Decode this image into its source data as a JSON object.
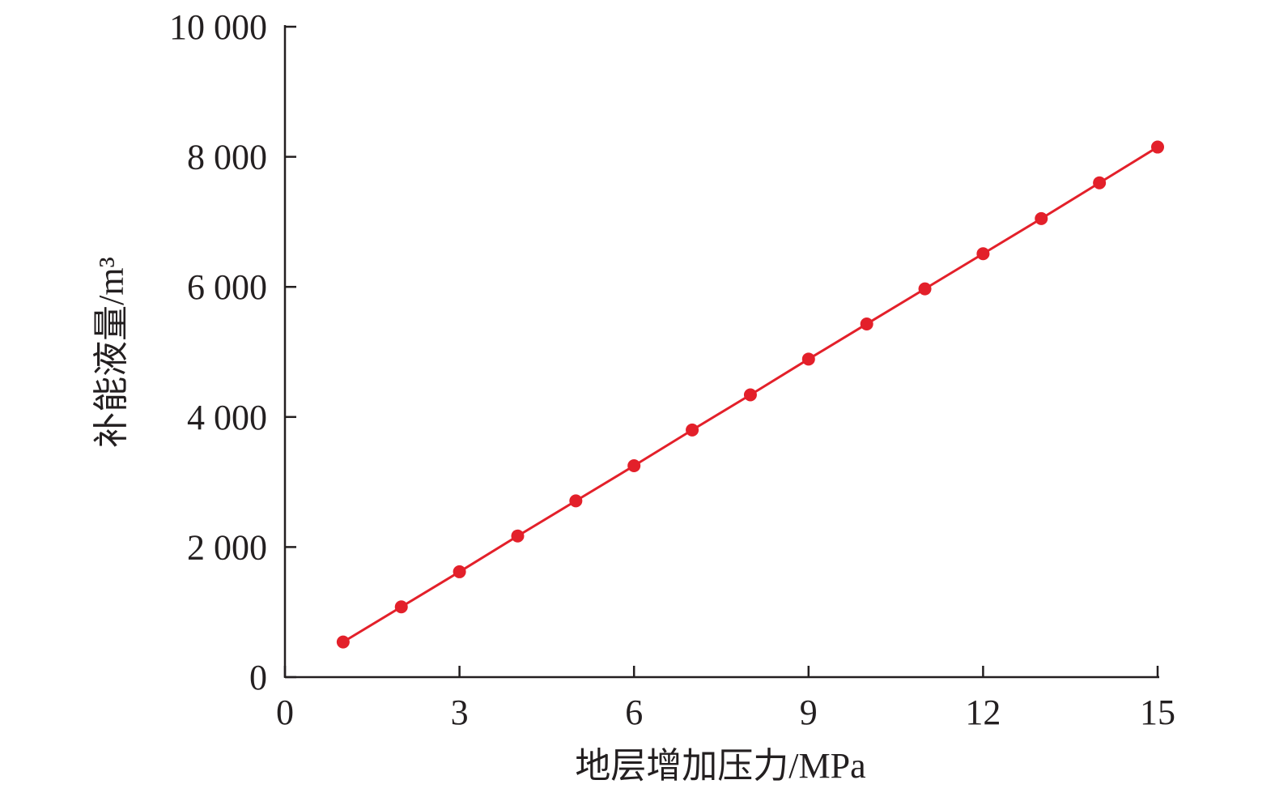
{
  "chart_data": {
    "type": "line",
    "x_label": "地层增加压力/MPa",
    "y_label": "补能液量/m³",
    "x": [
      1,
      2,
      3,
      4,
      5,
      6,
      7,
      8,
      9,
      10,
      11,
      12,
      13,
      14,
      15
    ],
    "values": [
      540,
      1080,
      1620,
      2170,
      2710,
      3250,
      3800,
      4340,
      4890,
      5430,
      5970,
      6510,
      7050,
      7600,
      8150
    ],
    "color": "#e3202a",
    "xlim": [
      0,
      15
    ],
    "xticks": [
      0,
      3,
      6,
      9,
      12,
      15
    ],
    "ylim": [
      0,
      10000
    ],
    "yticks": [
      0,
      {
        "value": 2000,
        "label": "2 000"
      },
      {
        "value": 4000,
        "label": "4 000"
      },
      {
        "value": 6000,
        "label": "6 000"
      },
      {
        "value": 8000,
        "label": "8 000"
      },
      {
        "value": 10000,
        "label": "10 000"
      }
    ],
    "grid": false
  }
}
